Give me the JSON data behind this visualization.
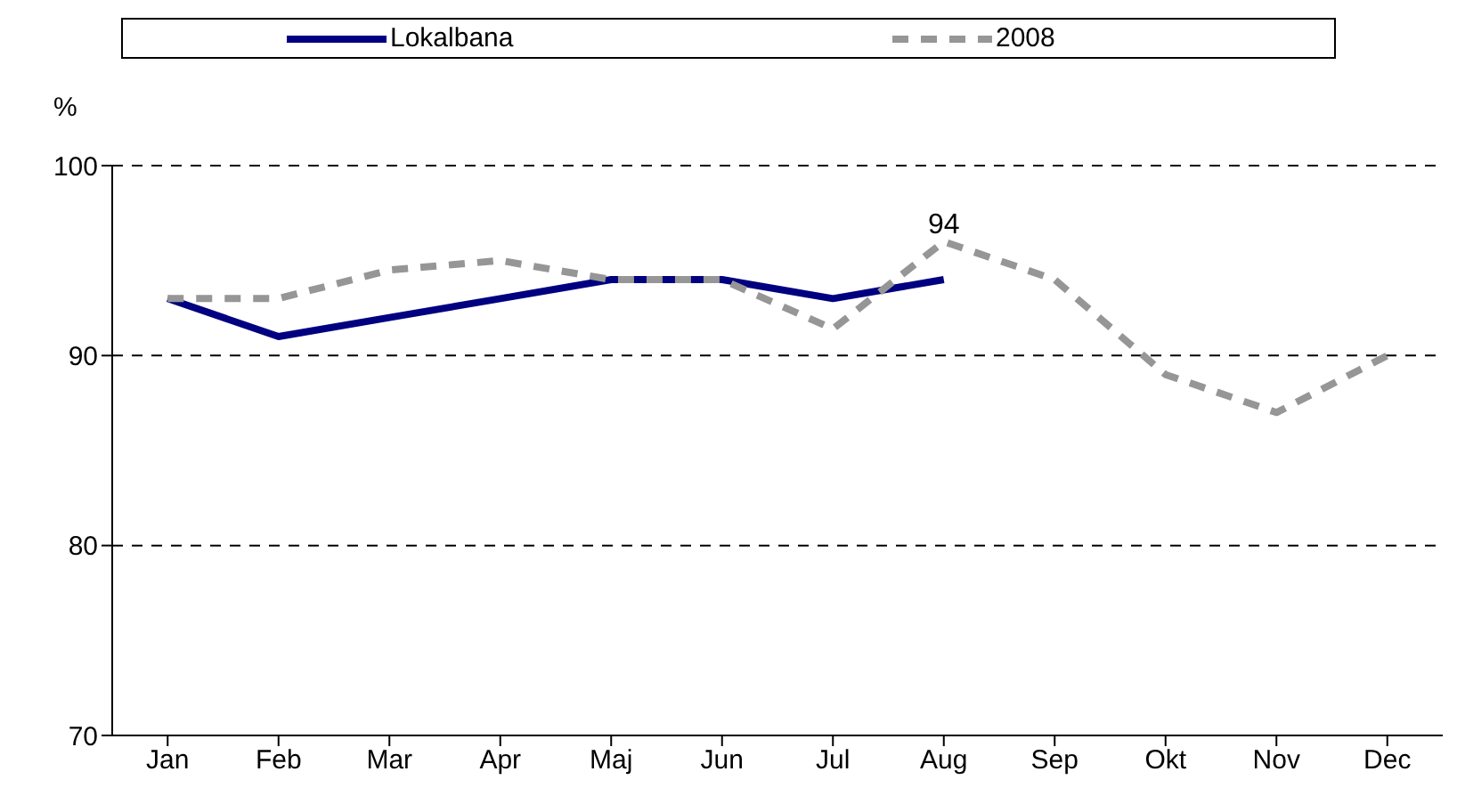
{
  "chart_data": {
    "type": "line",
    "ylabel": "%",
    "categories": [
      "Jan",
      "Feb",
      "Mar",
      "Apr",
      "Maj",
      "Jun",
      "Jul",
      "Aug",
      "Sep",
      "Okt",
      "Nov",
      "Dec"
    ],
    "series": [
      {
        "name": "Lokalbana",
        "color": "#000080",
        "line_style": "solid",
        "values": [
          93,
          91,
          92,
          93,
          94,
          94,
          93,
          94,
          null,
          null,
          null,
          null
        ],
        "value_labels": [
          null,
          null,
          null,
          null,
          null,
          null,
          null,
          "94",
          null,
          null,
          null,
          null
        ]
      },
      {
        "name": "2008",
        "color": "#969696",
        "line_style": "dashed",
        "values": [
          93,
          93,
          94.5,
          95,
          94,
          94,
          91.4,
          96,
          94,
          89,
          87,
          90
        ]
      }
    ],
    "ylim": [
      70,
      100
    ],
    "yticks": [
      70,
      80,
      90,
      100
    ],
    "grid": "y",
    "legend": "top",
    "marker": "none"
  }
}
